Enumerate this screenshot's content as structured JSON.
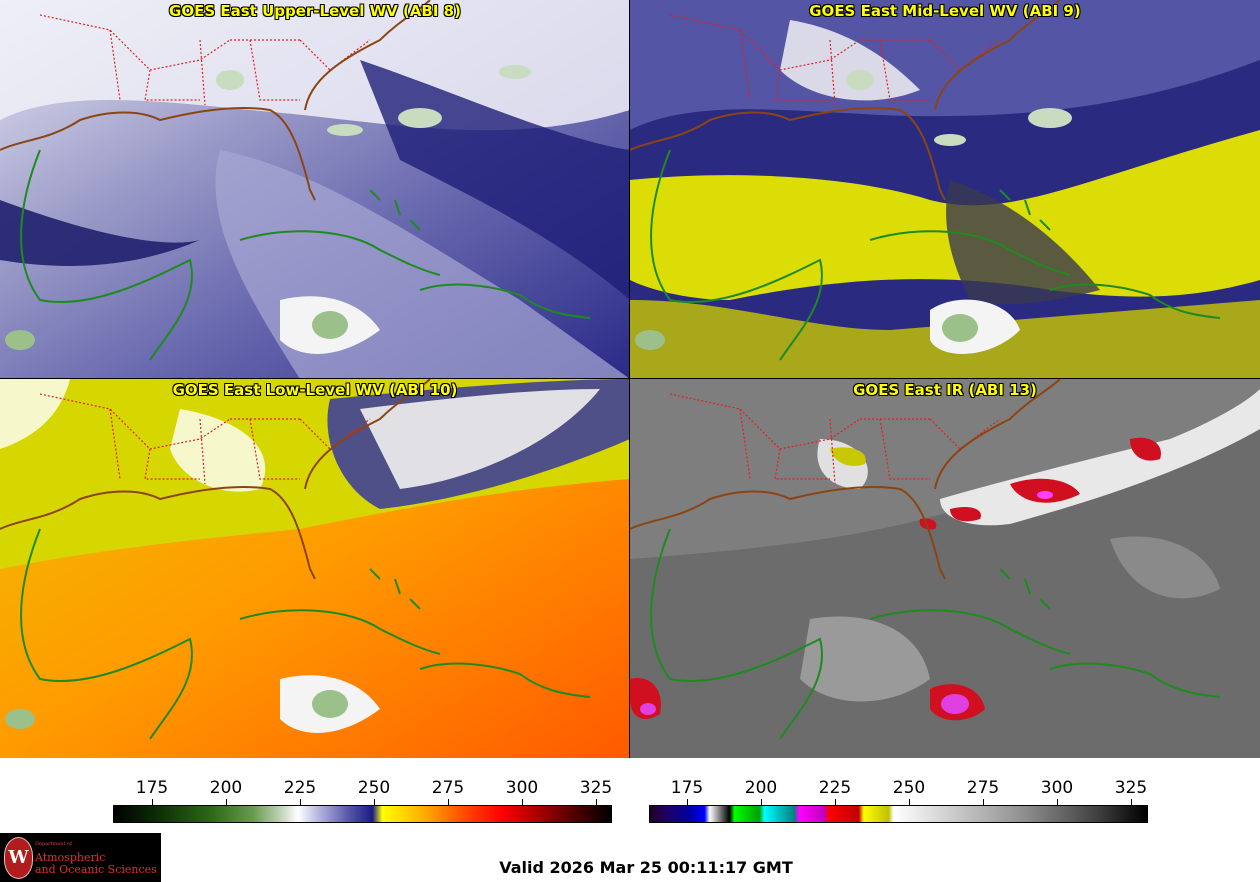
{
  "panels": {
    "upper": {
      "title": "GOES East Upper-Level WV (ABI 8)"
    },
    "mid": {
      "title": "GOES East Mid-Level WV (ABI 9)"
    },
    "low": {
      "title": "GOES East Low-Level WV (ABI 10)"
    },
    "ir": {
      "title": "GOES East IR (ABI 13)"
    }
  },
  "colorbars": {
    "wv": {
      "ticks": [
        "175",
        "200",
        "225",
        "250",
        "275",
        "300",
        "325"
      ]
    },
    "ir": {
      "ticks": [
        "175",
        "200",
        "225",
        "250",
        "275",
        "300",
        "325"
      ]
    }
  },
  "logo": {
    "seal": "W",
    "dept": "Department of",
    "line1": "Atmospheric",
    "line2": "and Oceanic Sciences"
  },
  "valid_time": "Valid 2026 Mar 25 00:11:17 GMT",
  "colors": {
    "title": "#ffff00",
    "state_borders": "#e02020",
    "coastlines_us": "#8b4513",
    "coastlines_other": "#1f8a1f"
  }
}
